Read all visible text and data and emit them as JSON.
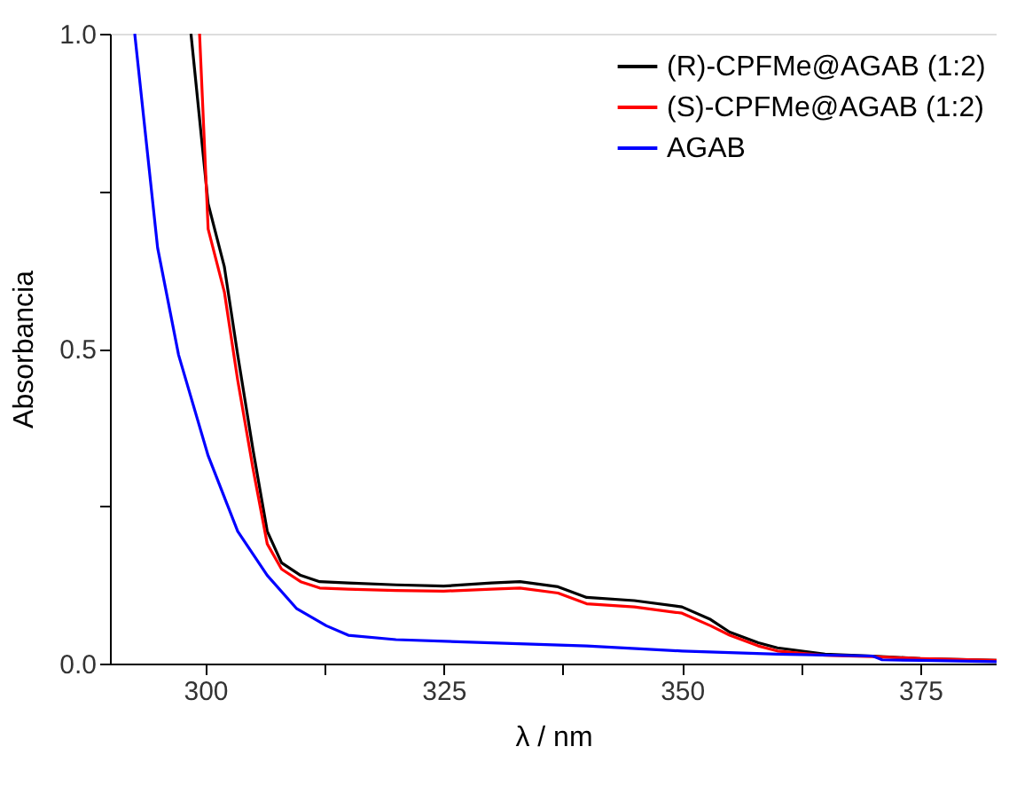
{
  "chart_data": {
    "type": "line",
    "xlabel": "λ / nm",
    "ylabel": "Absorbancia",
    "xlim": [
      290,
      383
    ],
    "ylim": [
      0,
      1
    ],
    "xticks": [
      300,
      {
        "value": 312.5,
        "label": null
      },
      325,
      {
        "value": 337.5,
        "label": null
      },
      350,
      {
        "value": 362.5,
        "label": null
      },
      375
    ],
    "yticks": [
      {
        "value": 0,
        "label": "0.0"
      },
      {
        "value": 0.25,
        "label": null
      },
      {
        "value": 0.5,
        "label": "0.5"
      },
      {
        "value": 0.75,
        "label": null
      },
      {
        "value": 1,
        "label": "1.0"
      }
    ],
    "grid": false,
    "legend": "top right",
    "line_style": "solid",
    "marker": "none",
    "series": [
      {
        "name": "(R)-CPFMe@AGAB (1:2)",
        "color": "#000000",
        "x": [
          298.5,
          300.3,
          302,
          303.4,
          305,
          306.5,
          308,
          310,
          312,
          315,
          320,
          325,
          330,
          333,
          337,
          340,
          345,
          350,
          353,
          355,
          358,
          360,
          365,
          370,
          375,
          383
        ],
        "values": [
          1.0,
          0.73,
          0.63,
          0.49,
          0.34,
          0.21,
          0.16,
          0.14,
          0.13,
          0.128,
          0.125,
          0.123,
          0.128,
          0.13,
          0.122,
          0.105,
          0.1,
          0.09,
          0.07,
          0.05,
          0.033,
          0.025,
          0.015,
          0.012,
          0.008,
          0.005
        ]
      },
      {
        "name": "(S)-CPFMe@AGAB (1:2)",
        "color": "#ff0000",
        "x": [
          299.4,
          300.3,
          302,
          303.4,
          305,
          306.5,
          308,
          310,
          312,
          315,
          320,
          325,
          330,
          333,
          337,
          340,
          345,
          350,
          353,
          355,
          358,
          360,
          365,
          370,
          375,
          383
        ],
        "values": [
          1.0,
          0.69,
          0.59,
          0.45,
          0.31,
          0.19,
          0.15,
          0.13,
          0.12,
          0.118,
          0.116,
          0.115,
          0.118,
          0.12,
          0.112,
          0.095,
          0.09,
          0.08,
          0.06,
          0.045,
          0.028,
          0.02,
          0.013,
          0.011,
          0.008,
          0.005
        ]
      },
      {
        "name": "AGAB",
        "color": "#0000ff",
        "x": [
          292.6,
          295,
          297.2,
          300.3,
          303.4,
          306.5,
          309.6,
          312.7,
          315,
          320,
          330,
          340,
          350,
          360,
          370,
          371,
          375,
          383
        ],
        "values": [
          1.0,
          0.66,
          0.49,
          0.33,
          0.21,
          0.14,
          0.087,
          0.06,
          0.045,
          0.038,
          0.033,
          0.028,
          0.02,
          0.015,
          0.012,
          0.006,
          0.005,
          0.003
        ]
      }
    ]
  }
}
